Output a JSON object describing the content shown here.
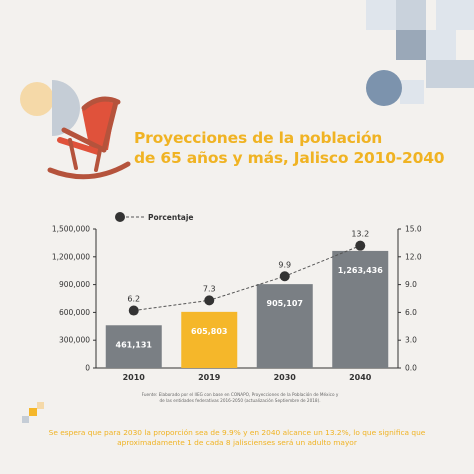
{
  "title": {
    "line1": "Proyecciones de la población",
    "line2": "de 65 años y más, Jalisco 2010-2040"
  },
  "legend_label": "Porcentaje",
  "source": "Fuente: Elaborado por el IIEG con base en CONAPO, Proyecciones de la Población de México y de las entidades federativas 2016-2050 (actualización Septiembre de 2018).",
  "footer": {
    "line1": "Se espera que para 2030 la proporción sea de 9.9% y en 2040 alcance un 13.2%, lo que significa que",
    "line2": "aproximadamente 1 de cada 8 jaliscienses será un adulto mayor"
  },
  "colors": {
    "bar": "#7a7f84",
    "highlight_bar": "#f5b72a",
    "title": "#f0b323",
    "line": "#555555",
    "point": "#333333",
    "chair": "#b5533c",
    "chair_seat": "#e0523b"
  },
  "chart_data": {
    "type": "bar",
    "categories": [
      "2010",
      "2019",
      "2030",
      "2040"
    ],
    "series": [
      {
        "values": [
          461131,
          605803,
          905107,
          1263436
        ],
        "labels": [
          "461,131",
          "605,803",
          "905,107",
          "1,263,436"
        ],
        "highlight_index": 1
      },
      {
        "name": "Porcentaje",
        "type": "line",
        "axis": "right",
        "values": [
          6.2,
          7.3,
          9.9,
          13.2
        ],
        "labels": [
          "6.2",
          "7.3",
          "9.9",
          "13.2"
        ]
      }
    ],
    "ylim_left": [
      0,
      1500000
    ],
    "yticks_left": [
      "0",
      "300,000",
      "600,000",
      "900,000",
      "1,200,000",
      "1,500,000"
    ],
    "ylim_right": [
      0,
      15
    ],
    "yticks_right": [
      "0.0",
      "3.0",
      "6.0",
      "9.0",
      "12.0",
      "15.0"
    ],
    "legend_position": "top-left",
    "grid": false
  }
}
